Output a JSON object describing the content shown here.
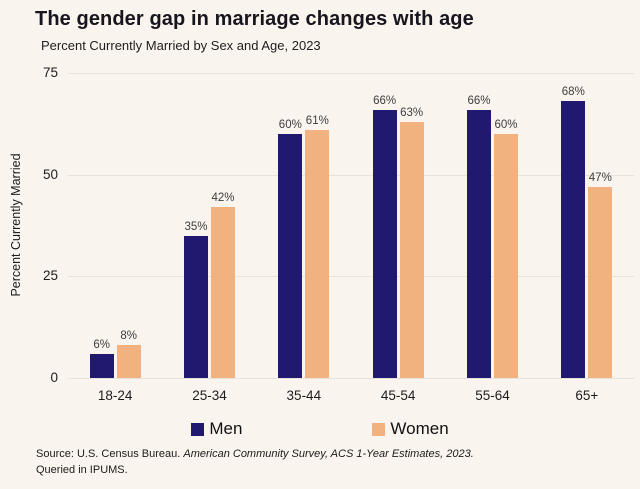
{
  "title": "The gender gap in marriage changes with age",
  "subtitle": "Percent Currently Married by Sex and Age, 2023",
  "source": {
    "prefix": "Source: U.S. Census Bureau. ",
    "italic": "American Community Survey, ACS 1-Year Estimates, 2023.",
    "line2": "Queried in IPUMS."
  },
  "colors": {
    "men": "#211970",
    "women": "#f2b27f",
    "background": "#faf4ee",
    "gridline": "#e7e2dc",
    "value_label": "#3d3d3d"
  },
  "chart_data": {
    "type": "bar",
    "categories": [
      "18-24",
      "25-34",
      "35-44",
      "45-54",
      "55-64",
      "65+"
    ],
    "series": [
      {
        "name": "Men",
        "color_key": "men",
        "values": [
          6,
          35,
          60,
          66,
          66,
          68
        ]
      },
      {
        "name": "Women",
        "color_key": "women",
        "values": [
          8,
          42,
          61,
          63,
          60,
          47
        ]
      }
    ],
    "title": "The gender gap in marriage changes with age",
    "subtitle": "Percent Currently Married by Sex and Age, 2023",
    "xlabel": "",
    "ylabel": "Percent Currently Married",
    "ylim": [
      0,
      75
    ],
    "yticks": [
      0,
      25,
      50,
      75
    ],
    "value_suffix": "%",
    "grid": "horizontal",
    "legend_position": "bottom"
  }
}
